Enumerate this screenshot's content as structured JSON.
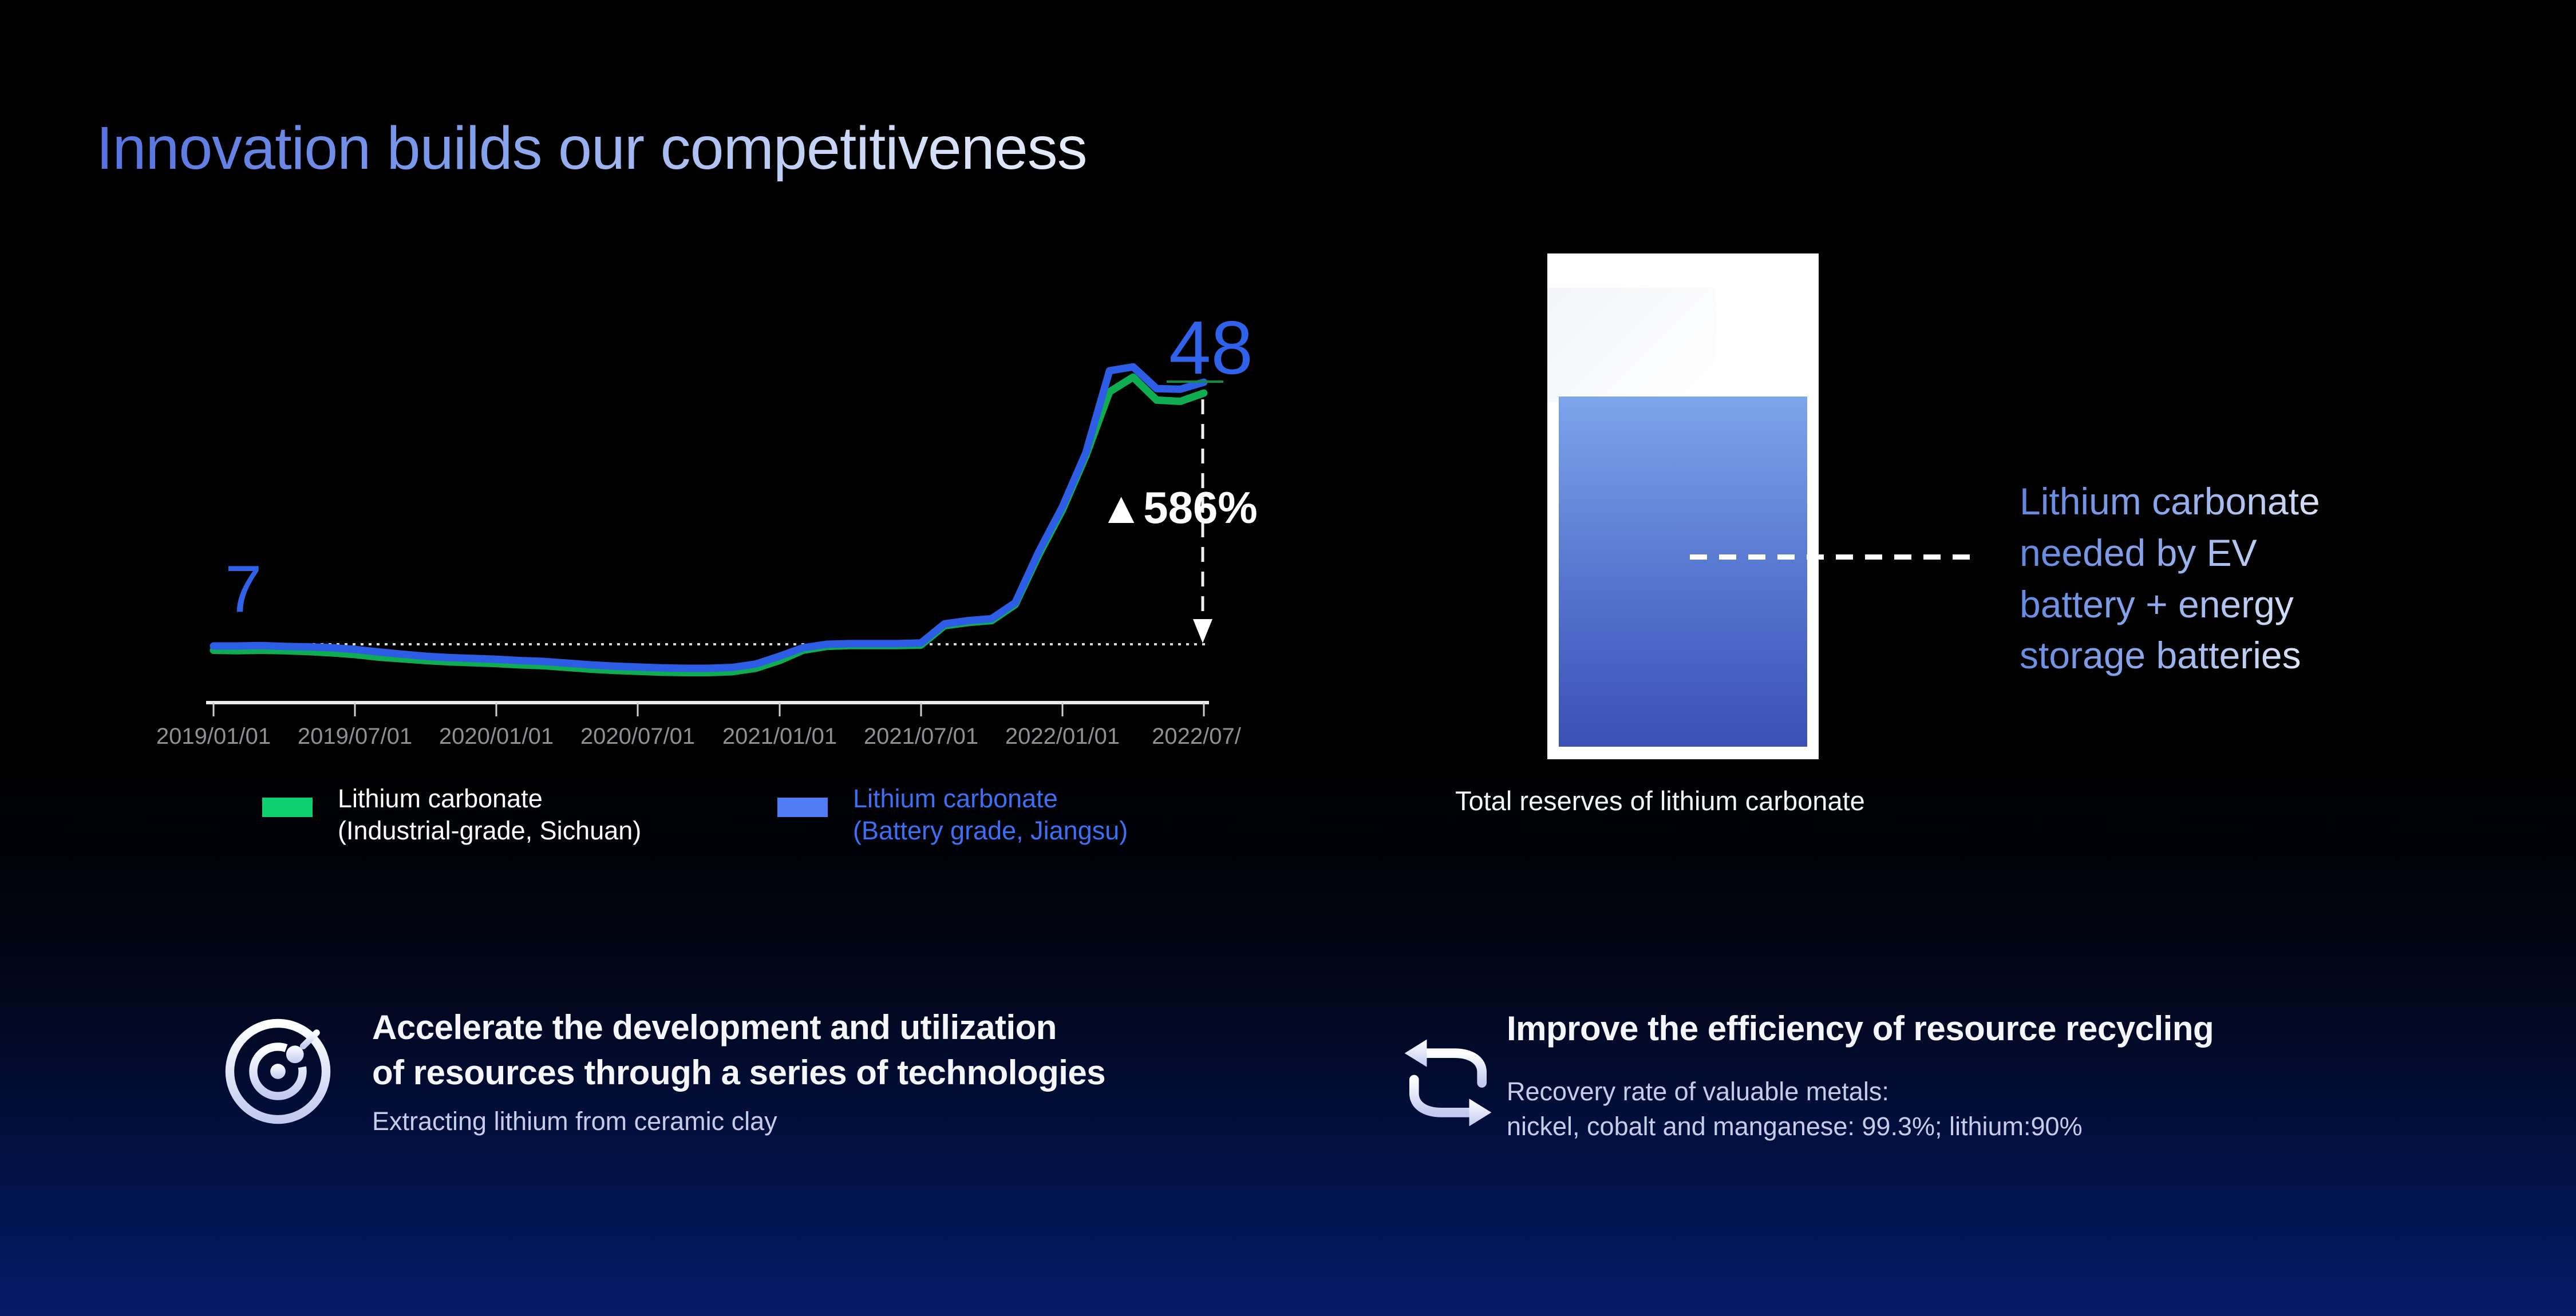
{
  "slide": {
    "title": "Innovation builds our competitiveness",
    "colors": {
      "background_top": "#000000",
      "background_bottom": "#031b68",
      "title_gradient": [
        "#5572E0",
        "#E6EDFB"
      ],
      "accent_blue": "#2F62E8",
      "accent_green": "#0FAD52",
      "tick_label_gray": "#8d9095"
    }
  },
  "chart_data": {
    "type": "line",
    "title": "",
    "x_ticks": [
      "2019/01/01",
      "2019/07/01",
      "2020/01/01",
      "2020/07/01",
      "2021/01/01",
      "2021/07/01",
      "2022/01/01",
      "2022/07/"
    ],
    "x": [
      "2019/01",
      "2019/02",
      "2019/03",
      "2019/04",
      "2019/05",
      "2019/06",
      "2019/07",
      "2019/08",
      "2019/09",
      "2019/10",
      "2019/11",
      "2019/12",
      "2020/01",
      "2020/02",
      "2020/03",
      "2020/04",
      "2020/05",
      "2020/06",
      "2020/07",
      "2020/08",
      "2020/09",
      "2020/10",
      "2020/11",
      "2020/12",
      "2021/01",
      "2021/02",
      "2021/03",
      "2021/04",
      "2021/05",
      "2021/06",
      "2021/07",
      "2021/08",
      "2021/09",
      "2021/10",
      "2021/11",
      "2021/12",
      "2022/01",
      "2022/02",
      "2022/03",
      "2022/04",
      "2022/05",
      "2022/06",
      "2022/07"
    ],
    "series": [
      {
        "name": "Lithium carbonate (Industrial-grade, Sichuan)",
        "color": "#0FAD52",
        "values": [
          6.3,
          6.25,
          6.3,
          6.25,
          6.15,
          6.0,
          5.8,
          5.5,
          5.3,
          5.1,
          4.95,
          4.85,
          4.75,
          4.6,
          4.5,
          4.3,
          4.1,
          3.95,
          3.85,
          3.75,
          3.7,
          3.7,
          3.8,
          4.2,
          5.1,
          6.3,
          6.75,
          6.85,
          6.85,
          6.85,
          6.9,
          9.9,
          10.4,
          10.7,
          13.2,
          21.0,
          28.0,
          36.5,
          46.5,
          48.8,
          45.2,
          45.0,
          46.3
        ]
      },
      {
        "name": "Lithium carbonate (Battery grade, Jiangsu)",
        "color": "#2D5CE5",
        "values": [
          6.8,
          6.8,
          6.85,
          6.75,
          6.7,
          6.6,
          6.4,
          6.1,
          5.85,
          5.6,
          5.45,
          5.35,
          5.25,
          5.1,
          5.0,
          4.8,
          4.6,
          4.45,
          4.35,
          4.25,
          4.2,
          4.2,
          4.3,
          4.7,
          5.6,
          6.6,
          7.0,
          7.1,
          7.1,
          7.1,
          7.2,
          10.2,
          10.7,
          11.0,
          13.5,
          21.5,
          28.5,
          37.0,
          49.8,
          50.4,
          47.0,
          46.9,
          48.0
        ]
      }
    ],
    "annotations": {
      "start_label": "7",
      "end_label": "48",
      "change_label": "▲586%",
      "baseline_value": 7
    },
    "grid": false,
    "legend_position": "bottom"
  },
  "legend": {
    "items": [
      {
        "swatch_color": "#0ED070",
        "text_color": "#FFFFFF",
        "line1": "Lithium carbonate",
        "line2": "(Industrial-grade, Sichuan)"
      },
      {
        "swatch_color": "#4F7CF2",
        "text_color": "#3D6FF2",
        "line1": "Lithium carbonate",
        "line2": "(Battery grade, Jiangsu)"
      }
    ]
  },
  "reserves": {
    "caption": "Total reserves of lithium carbonate",
    "note_lines": [
      "Lithium carbonate",
      "needed by EV",
      "battery + energy",
      "storage batteries"
    ],
    "fill_gradient": [
      "#7CA5EA",
      "#3A50B5"
    ]
  },
  "highlights": [
    {
      "icon": "radar-target-icon",
      "title_lines": [
        "Accelerate the development and utilization",
        "of resources through a series of technologies"
      ],
      "note_lines": [
        "Extracting lithium from ceramic clay"
      ]
    },
    {
      "icon": "recycle-loop-icon",
      "title_lines": [
        "Improve the efficiency of resource recycling"
      ],
      "note_lines": [
        "Recovery rate of valuable metals:",
        "nickel, cobalt and  manganese: 99.3%; lithium:90%"
      ]
    }
  ]
}
